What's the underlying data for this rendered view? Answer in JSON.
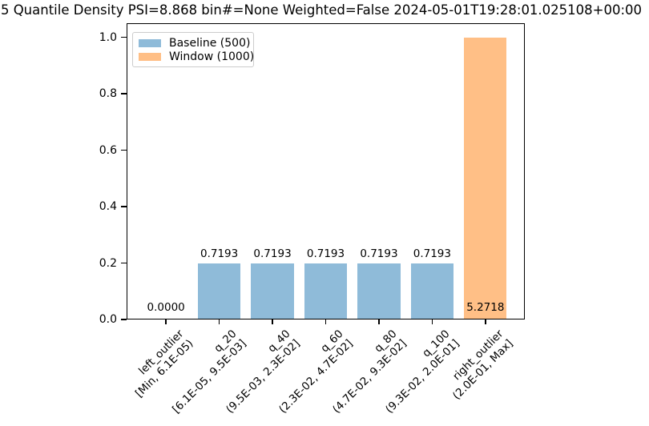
{
  "title": "5 Quantile Density PSI=8.868 bin#=None Weighted=False 2024-05-01T19:28:01.025108+00:00",
  "legend": {
    "items": [
      {
        "label": "Baseline (500)",
        "color": "#8fbbd9"
      },
      {
        "label": "Window (1000)",
        "color": "#ffbf86"
      }
    ]
  },
  "chart_data": {
    "type": "bar",
    "title": "5 Quantile Density PSI=8.868 bin#=None Weighted=False 2024-05-01T19:28:01.025108+00:00",
    "psi_total": 8.868,
    "bin_count": "None",
    "weighted": "False",
    "timestamp": "2024-05-01T19:28:01.025108+00:00",
    "categories": [
      {
        "name": "left_outlier",
        "range": "[Min, 6.1E-05)"
      },
      {
        "name": "q_20",
        "range": "[6.1E-05, 9.5E-03]"
      },
      {
        "name": "q_40",
        "range": "(9.5E-03, 2.3E-02]"
      },
      {
        "name": "q_60",
        "range": "(2.3E-02, 4.7E-02]"
      },
      {
        "name": "q_80",
        "range": "(4.7E-02, 9.3E-02]"
      },
      {
        "name": "q_100",
        "range": "(9.3E-02, 2.0E-01]"
      },
      {
        "name": "right_outlier",
        "range": "(2.0E-01, Max]"
      }
    ],
    "series": [
      {
        "name": "Baseline (500)",
        "color": "#8fbbd9",
        "values": [
          0.0,
          0.2,
          0.2,
          0.2,
          0.2,
          0.2,
          0.0
        ]
      },
      {
        "name": "Window (1000)",
        "color": "#ffbf86",
        "values": [
          0.0,
          0.0,
          0.0,
          0.0,
          0.0,
          0.0,
          1.0
        ]
      }
    ],
    "bar_labels": [
      "0.0000",
      "0.7193",
      "0.7193",
      "0.7193",
      "0.7193",
      "0.7193",
      "5.2718"
    ],
    "xlabel": "",
    "ylabel": "",
    "ylim": [
      0,
      1.05
    ],
    "yticks": [
      "0.0",
      "0.2",
      "0.4",
      "0.6",
      "0.8",
      "1.0"
    ],
    "grid": false,
    "legend_position": "upper left"
  }
}
